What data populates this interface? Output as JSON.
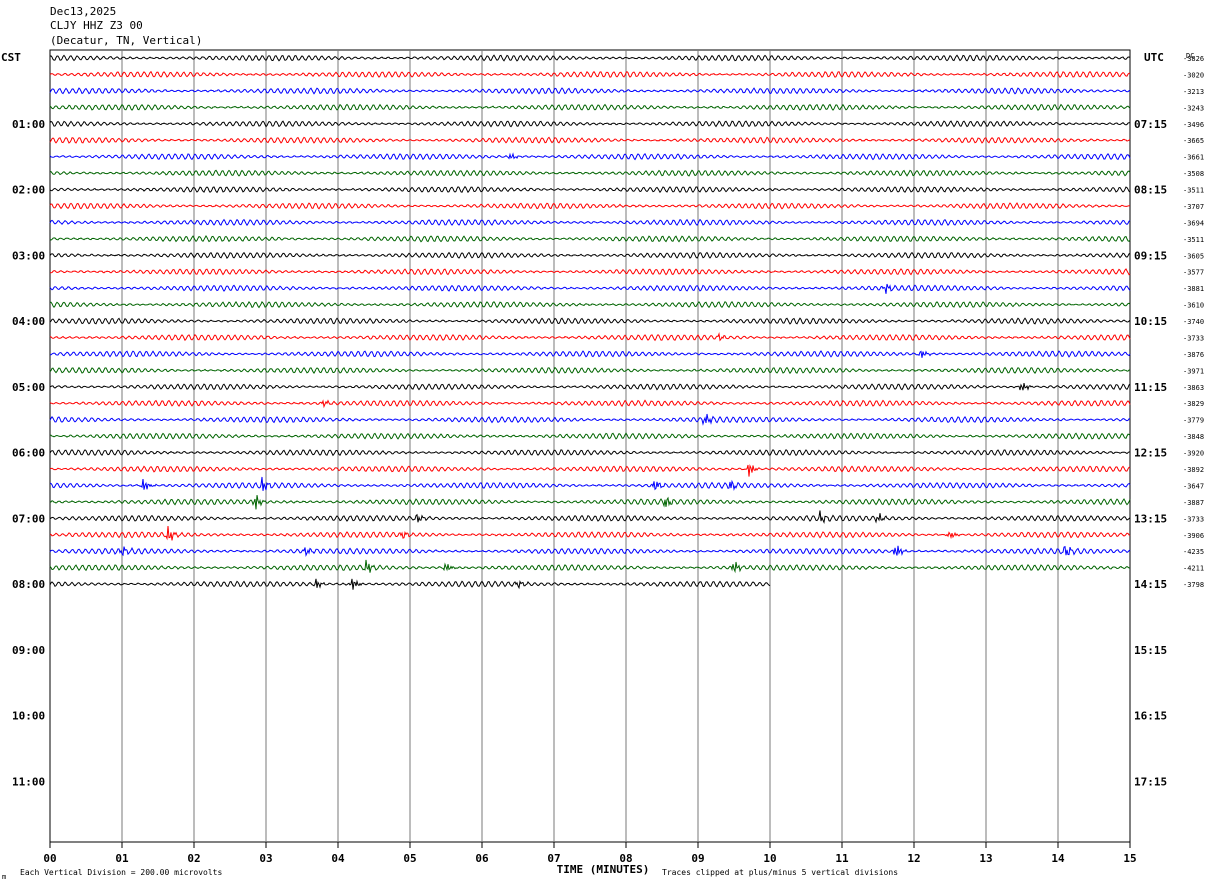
{
  "header": {
    "date": "Dec13,2025",
    "station": "CLJY HHZ Z3 00",
    "location": "(Decatur, TN, Vertical)"
  },
  "chart_data": {
    "type": "line",
    "left_tz": "CST",
    "right_tz": "UTC",
    "corner_label": "DC",
    "xlabel": "TIME (MINUTES)",
    "x_ticks": [
      "00",
      "01",
      "02",
      "03",
      "04",
      "05",
      "06",
      "07",
      "08",
      "09",
      "10",
      "11",
      "12",
      "13",
      "14",
      "15"
    ],
    "xlim": [
      0,
      15
    ],
    "left_hour_labels": [
      "01:00",
      "02:00",
      "03:00",
      "04:00",
      "05:00",
      "06:00",
      "07:00",
      "08:00",
      "09:00",
      "10:00",
      "11:00"
    ],
    "right_hour_labels": [
      "07:15",
      "08:15",
      "09:15",
      "10:15",
      "11:15",
      "12:15",
      "13:15",
      "14:15",
      "15:15",
      "16:15",
      "17:15"
    ],
    "trace_colors": [
      "#000000",
      "#ff0000",
      "#0000ff",
      "#006400"
    ],
    "trace_offsets": [
      "-3826",
      "-3020",
      "-3213",
      "-3243",
      "-3496",
      "-3665",
      "-3661",
      "-3508",
      "-3511",
      "-3707",
      "-3694",
      "-3511",
      "-3605",
      "-3577",
      "-3881",
      "-3610",
      "-3740",
      "-3733",
      "-3876",
      "-3971",
      "-3863",
      "-3829",
      "-3779",
      "-3848",
      "-3920",
      "-3892",
      "-3647",
      "-3887",
      "-3733",
      "-3906",
      "-4235",
      "-4211",
      "-3798"
    ],
    "last_trace_end_minute": 10,
    "events": [
      {
        "trace": 6,
        "minute": 6.4,
        "amp": 4
      },
      {
        "trace": 14,
        "minute": 11.6,
        "amp": 6
      },
      {
        "trace": 17,
        "minute": 9.3,
        "amp": 3
      },
      {
        "trace": 18,
        "minute": 12.1,
        "amp": 5
      },
      {
        "trace": 20,
        "minute": 13.5,
        "amp": 6
      },
      {
        "trace": 21,
        "minute": 3.8,
        "amp": 4
      },
      {
        "trace": 22,
        "minute": 9.1,
        "amp": 7
      },
      {
        "trace": 25,
        "minute": 9.7,
        "amp": 8
      },
      {
        "trace": 26,
        "minute": 1.3,
        "amp": 7
      },
      {
        "trace": 26,
        "minute": 2.95,
        "amp": 7
      },
      {
        "trace": 26,
        "minute": 8.4,
        "amp": 6
      },
      {
        "trace": 26,
        "minute": 9.45,
        "amp": 5
      },
      {
        "trace": 27,
        "minute": 2.85,
        "amp": 8
      },
      {
        "trace": 27,
        "minute": 8.55,
        "amp": 6
      },
      {
        "trace": 28,
        "minute": 5.1,
        "amp": 5
      },
      {
        "trace": 28,
        "minute": 10.7,
        "amp": 6
      },
      {
        "trace": 28,
        "minute": 11.5,
        "amp": 5
      },
      {
        "trace": 29,
        "minute": 1.65,
        "amp": 9
      },
      {
        "trace": 29,
        "minute": 4.9,
        "amp": 4
      },
      {
        "trace": 29,
        "minute": 12.5,
        "amp": 5
      },
      {
        "trace": 30,
        "minute": 1.0,
        "amp": 5
      },
      {
        "trace": 30,
        "minute": 3.55,
        "amp": 5
      },
      {
        "trace": 30,
        "minute": 11.75,
        "amp": 9
      },
      {
        "trace": 30,
        "minute": 14.1,
        "amp": 8
      },
      {
        "trace": 31,
        "minute": 4.4,
        "amp": 7
      },
      {
        "trace": 31,
        "minute": 5.5,
        "amp": 5
      },
      {
        "trace": 31,
        "minute": 9.5,
        "amp": 7
      },
      {
        "trace": 32,
        "minute": 3.7,
        "amp": 5
      },
      {
        "trace": 32,
        "minute": 4.2,
        "amp": 7
      },
      {
        "trace": 32,
        "minute": 6.5,
        "amp": 4
      }
    ]
  },
  "footer": {
    "scale_note": "Each Vertical Division =  200.00 microvolts",
    "clip_note": "Traces clipped at plus/minus 5 vertical divisions",
    "corner_mark": "m"
  }
}
